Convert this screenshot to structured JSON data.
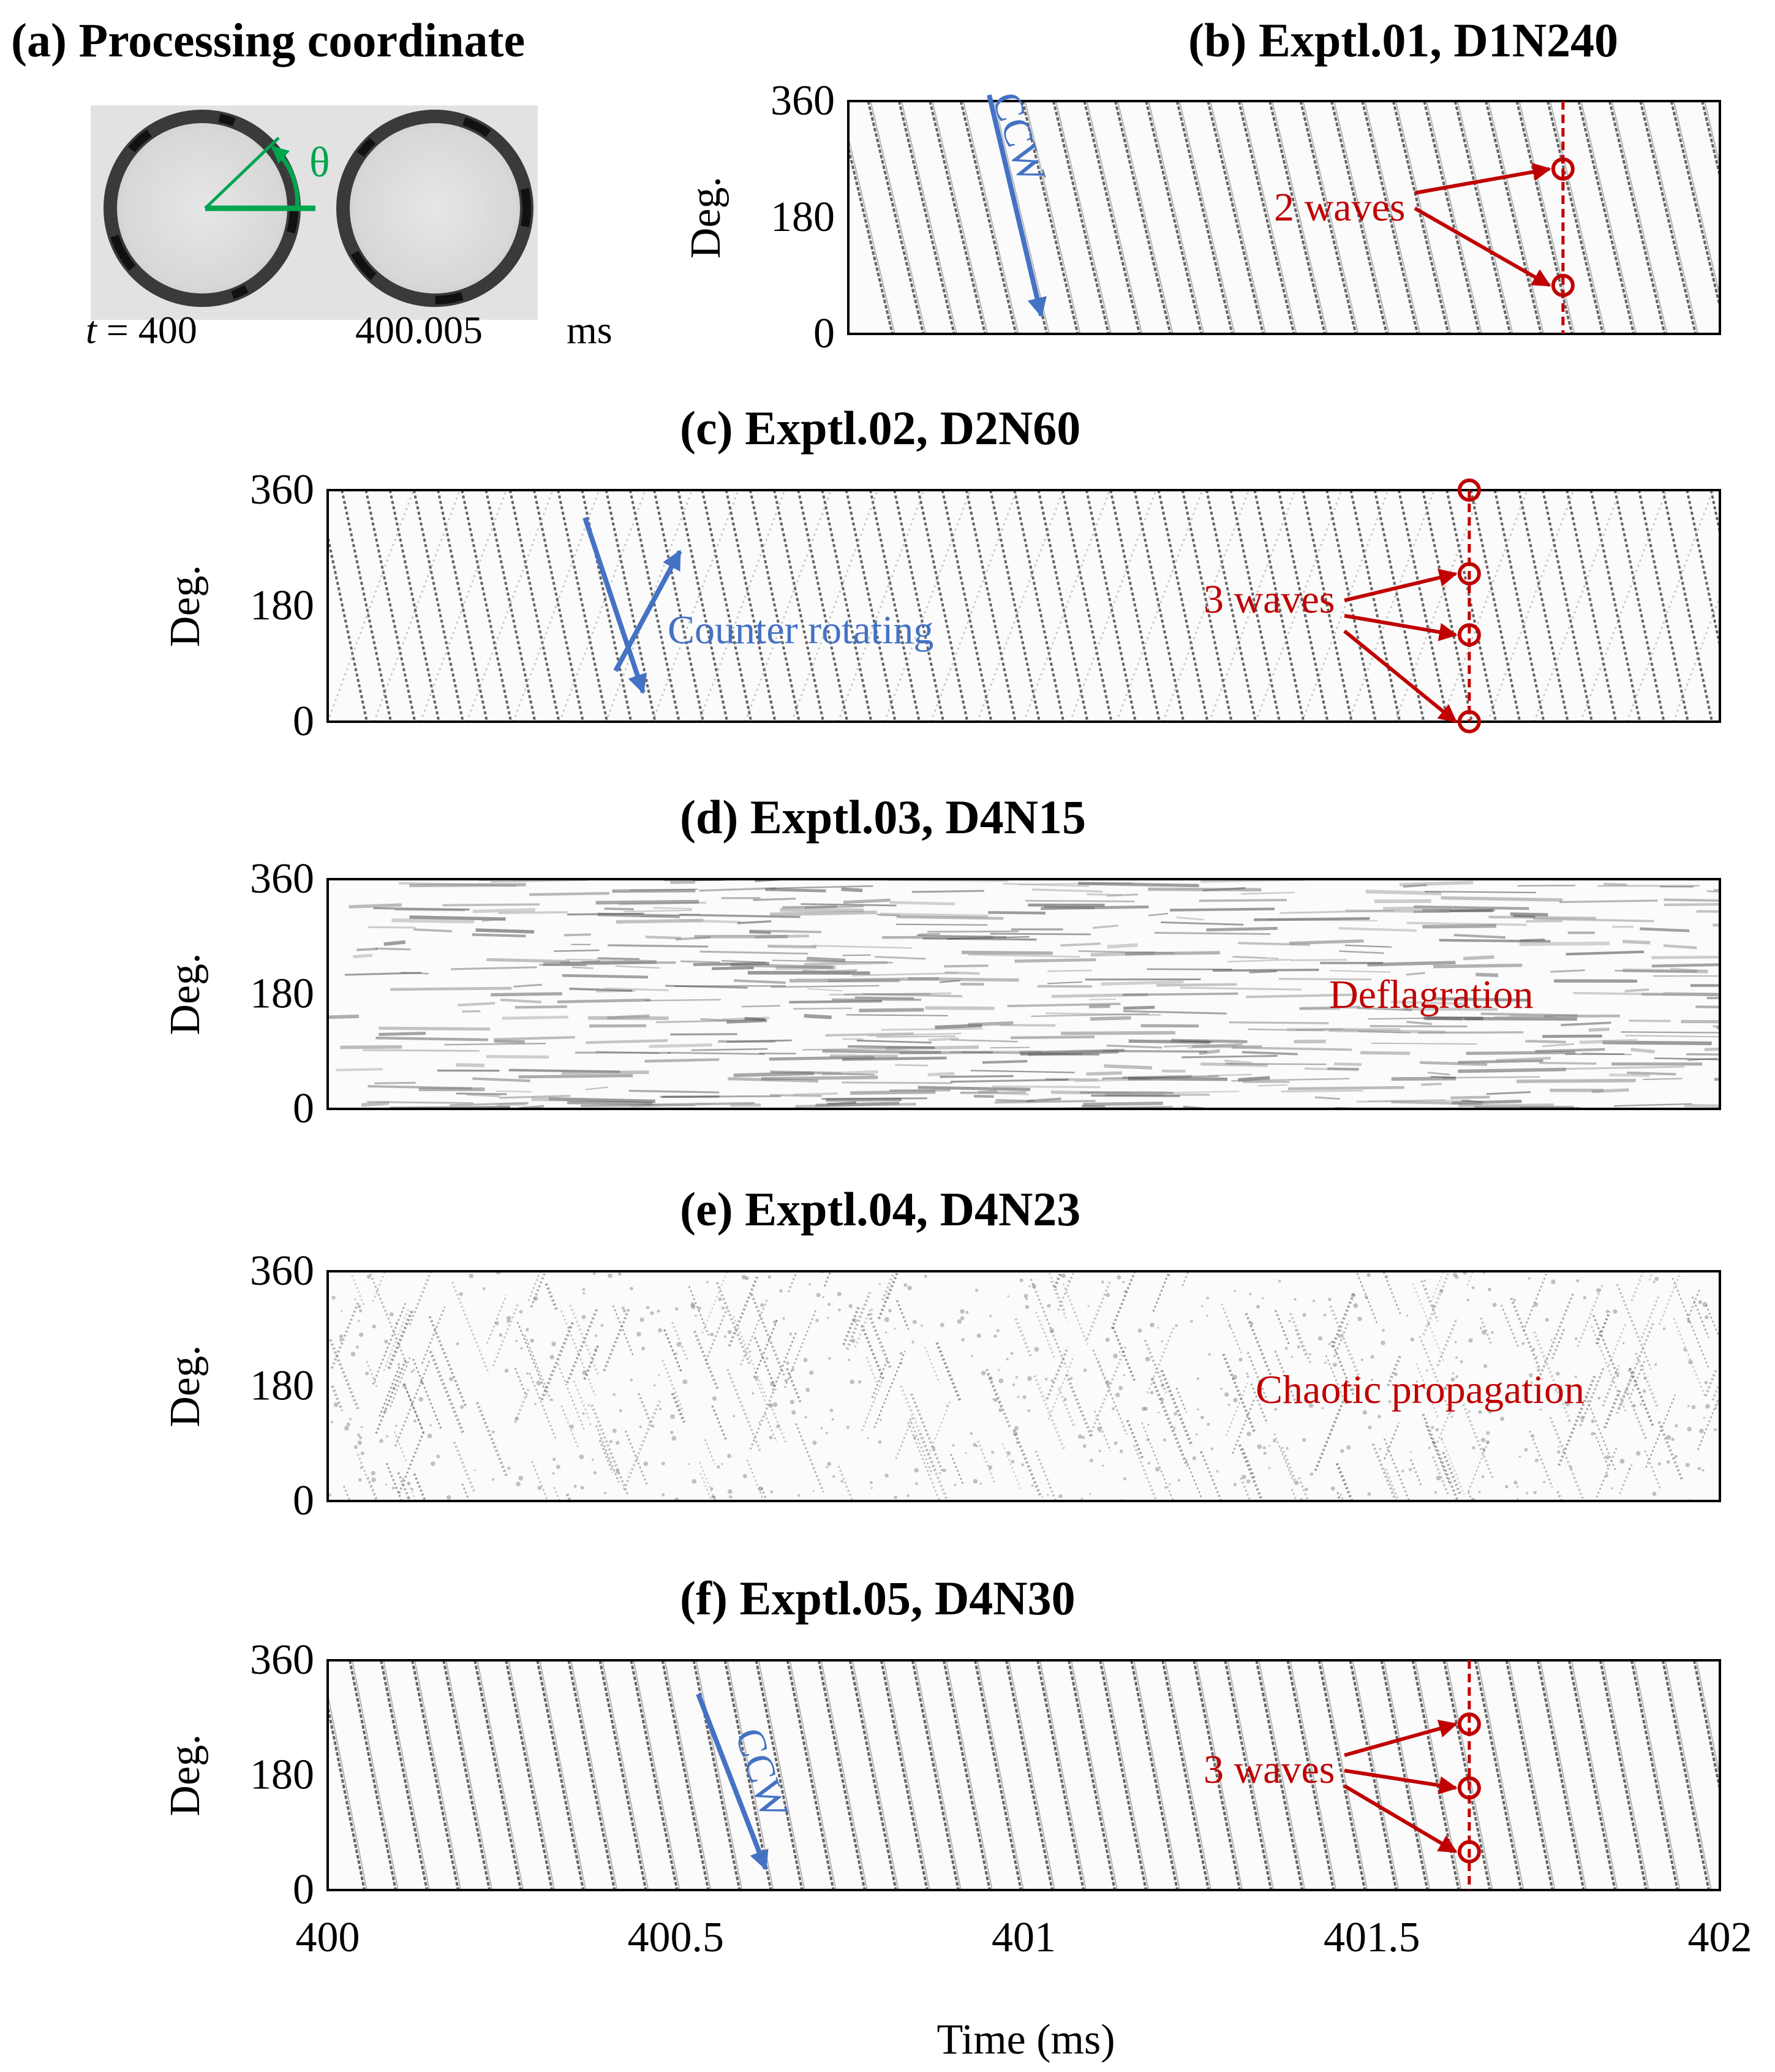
{
  "panel_a": {
    "title": "(a) Processing coordinate",
    "theta_label": "θ",
    "t_prefix": "t",
    "t_eq": " =  ",
    "t1": "400",
    "t2": "400.005",
    "unit": "ms"
  },
  "x_axis": {
    "label": "Time (ms)",
    "ticks": [
      "400",
      "400.5",
      "401",
      "401.5",
      "402"
    ]
  },
  "colors": {
    "annotation_red": "#c00000",
    "annotation_blue": "#4472c4",
    "coord_green": "#00a550",
    "wave_gray": "#555555"
  },
  "chart_data": [
    {
      "type": "heatmap",
      "title": "(b) Exptl.01, D1N240",
      "ylabel": "Deg.",
      "ylim": [
        0,
        360
      ],
      "yticks": [
        "360",
        "180",
        "0"
      ],
      "xlim": [
        400,
        402
      ],
      "pattern": "ccw",
      "annotation": "2 waves",
      "direction_label": "CCW",
      "marker_time": 401.64,
      "marker_degrees": [
        255,
        75
      ]
    },
    {
      "type": "heatmap",
      "title": "(c) Exptl.02, D2N60",
      "ylabel": "Deg.",
      "ylim": [
        0,
        360
      ],
      "yticks": [
        "360",
        "180",
        "0"
      ],
      "xlim": [
        400,
        402
      ],
      "pattern": "counter",
      "annotation": "3 waves",
      "direction_label": "Counter rotating",
      "marker_time": 401.64,
      "marker_degrees": [
        360,
        230,
        135,
        0
      ]
    },
    {
      "type": "heatmap",
      "title": "(d) Exptl.03, D4N15",
      "ylabel": "Deg.",
      "ylim": [
        0,
        360
      ],
      "yticks": [
        "360",
        "180",
        "0"
      ],
      "xlim": [
        400,
        402
      ],
      "pattern": "deflagration",
      "annotation": "Deflagration"
    },
    {
      "type": "heatmap",
      "title": "(e) Exptl.04, D4N23",
      "ylabel": "Deg.",
      "ylim": [
        0,
        360
      ],
      "yticks": [
        "360",
        "180",
        "0"
      ],
      "xlim": [
        400,
        402
      ],
      "pattern": "chaotic",
      "annotation": "Chaotic propagation"
    },
    {
      "type": "heatmap",
      "title": "(f) Exptl.05, D4N30",
      "ylabel": "Deg.",
      "ylim": [
        0,
        360
      ],
      "yticks": [
        "360",
        "180",
        "0"
      ],
      "xlim": [
        400,
        402
      ],
      "pattern": "ccw3",
      "annotation": "3 waves",
      "direction_label": "CCW",
      "marker_time": 401.64,
      "marker_degrees": [
        260,
        160,
        60
      ]
    }
  ]
}
